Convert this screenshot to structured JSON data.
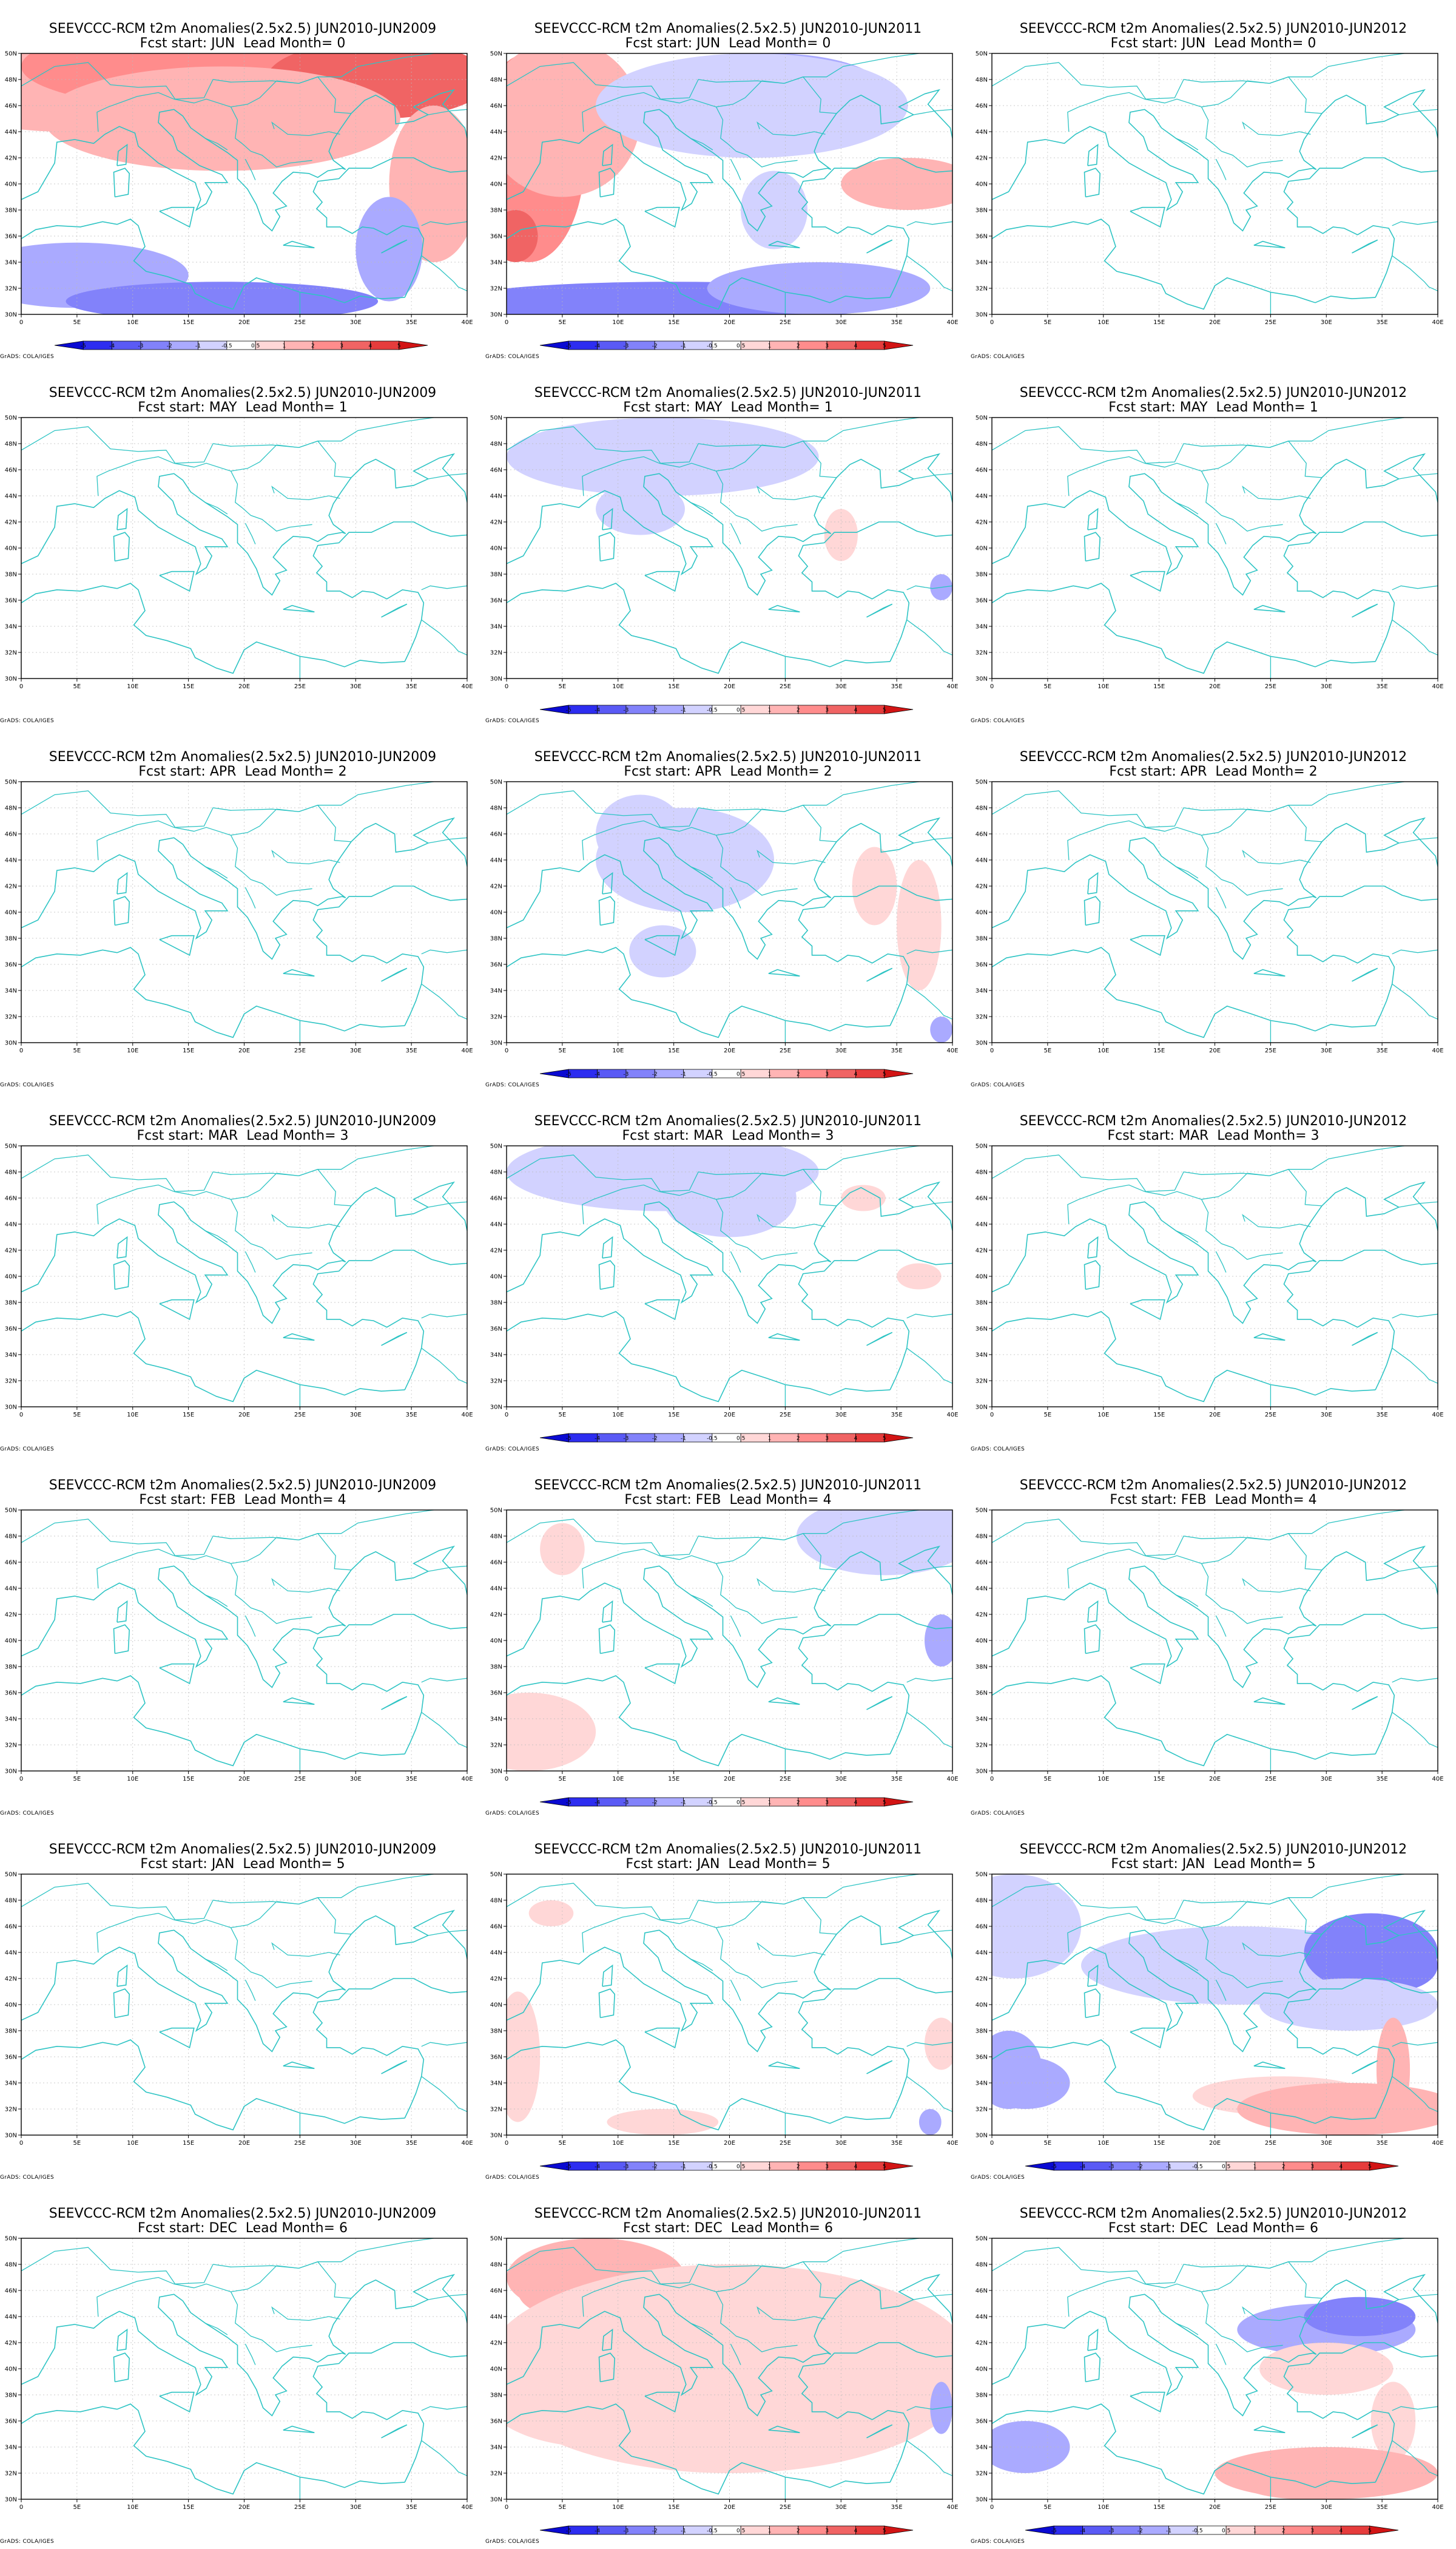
{
  "chart_data": {
    "type": "filled-contour-map-grid",
    "variable": "t2m",
    "credit": "GrADS: COLA/IGES",
    "columns": [
      {
        "comparison": "JUN2010-JUN2009"
      },
      {
        "comparison": "JUN2010-JUN2011"
      },
      {
        "comparison": "JUN2010-JUN2012"
      }
    ],
    "rows": [
      {
        "start": "JUN",
        "lead": 0
      },
      {
        "start": "MAY",
        "lead": 1
      },
      {
        "start": "APR",
        "lead": 2
      },
      {
        "start": "MAR",
        "lead": 3
      },
      {
        "start": "FEB",
        "lead": 4
      },
      {
        "start": "JAN",
        "lead": 5
      },
      {
        "start": "DEC",
        "lead": 6
      }
    ],
    "panels": [
      {
        "title_line1": "SEEVCCC-RCM t2m Anomalies(2.5x2.5) JUN2010-JUN2009",
        "title_line2": "Fcst start: JUN  Lead Month= 0",
        "row": 0,
        "col": 0,
        "colorbar": true,
        "anomaly_level": 2.0,
        "dominant_sign": "mixed"
      },
      {
        "title_line1": "SEEVCCC-RCM t2m Anomalies(2.5x2.5) JUN2010-JUN2011",
        "title_line2": "Fcst start: JUN  Lead Month= 0",
        "row": 0,
        "col": 1,
        "colorbar": true,
        "anomaly_level": 2.0,
        "dominant_sign": "mixed"
      },
      {
        "title_line1": "SEEVCCC-RCM t2m Anomalies(2.5x2.5) JUN2010-JUN2012",
        "title_line2": "Fcst start: JUN  Lead Month= 0",
        "row": 0,
        "col": 2,
        "colorbar": false,
        "anomaly_level": 0,
        "dominant_sign": "none"
      },
      {
        "title_line1": "SEEVCCC-RCM t2m Anomalies(2.5x2.5) JUN2010-JUN2009",
        "title_line2": "Fcst start: MAY  Lead Month= 1",
        "row": 1,
        "col": 0,
        "colorbar": false,
        "anomaly_level": 0,
        "dominant_sign": "none"
      },
      {
        "title_line1": "SEEVCCC-RCM t2m Anomalies(2.5x2.5) JUN2010-JUN2011",
        "title_line2": "Fcst start: MAY  Lead Month= 1",
        "row": 1,
        "col": 1,
        "colorbar": true,
        "anomaly_level": 0.5,
        "dominant_sign": "negative"
      },
      {
        "title_line1": "SEEVCCC-RCM t2m Anomalies(2.5x2.5) JUN2010-JUN2012",
        "title_line2": "Fcst start: MAY  Lead Month= 1",
        "row": 1,
        "col": 2,
        "colorbar": false,
        "anomaly_level": 0,
        "dominant_sign": "none"
      },
      {
        "title_line1": "SEEVCCC-RCM t2m Anomalies(2.5x2.5) JUN2010-JUN2009",
        "title_line2": "Fcst start: APR  Lead Month= 2",
        "row": 2,
        "col": 0,
        "colorbar": false,
        "anomaly_level": 0,
        "dominant_sign": "none"
      },
      {
        "title_line1": "SEEVCCC-RCM t2m Anomalies(2.5x2.5) JUN2010-JUN2011",
        "title_line2": "Fcst start: APR  Lead Month= 2",
        "row": 2,
        "col": 1,
        "colorbar": true,
        "anomaly_level": 0.5,
        "dominant_sign": "negative"
      },
      {
        "title_line1": "SEEVCCC-RCM t2m Anomalies(2.5x2.5) JUN2010-JUN2012",
        "title_line2": "Fcst start: APR  Lead Month= 2",
        "row": 2,
        "col": 2,
        "colorbar": false,
        "anomaly_level": 0,
        "dominant_sign": "none"
      },
      {
        "title_line1": "SEEVCCC-RCM t2m Anomalies(2.5x2.5) JUN2010-JUN2009",
        "title_line2": "Fcst start: MAR  Lead Month= 3",
        "row": 3,
        "col": 0,
        "colorbar": false,
        "anomaly_level": 0,
        "dominant_sign": "none"
      },
      {
        "title_line1": "SEEVCCC-RCM t2m Anomalies(2.5x2.5) JUN2010-JUN2011",
        "title_line2": "Fcst start: MAR  Lead Month= 3",
        "row": 3,
        "col": 1,
        "colorbar": true,
        "anomaly_level": 0.5,
        "dominant_sign": "negative"
      },
      {
        "title_line1": "SEEVCCC-RCM t2m Anomalies(2.5x2.5) JUN2010-JUN2012",
        "title_line2": "Fcst start: MAR  Lead Month= 3",
        "row": 3,
        "col": 2,
        "colorbar": false,
        "anomaly_level": 0,
        "dominant_sign": "none"
      },
      {
        "title_line1": "SEEVCCC-RCM t2m Anomalies(2.5x2.5) JUN2010-JUN2009",
        "title_line2": "Fcst start: FEB  Lead Month= 4",
        "row": 4,
        "col": 0,
        "colorbar": false,
        "anomaly_level": 0,
        "dominant_sign": "none"
      },
      {
        "title_line1": "SEEVCCC-RCM t2m Anomalies(2.5x2.5) JUN2010-JUN2011",
        "title_line2": "Fcst start: FEB  Lead Month= 4",
        "row": 4,
        "col": 1,
        "colorbar": true,
        "anomaly_level": 0.5,
        "dominant_sign": "mixed"
      },
      {
        "title_line1": "SEEVCCC-RCM t2m Anomalies(2.5x2.5) JUN2010-JUN2012",
        "title_line2": "Fcst start: FEB  Lead Month= 4",
        "row": 4,
        "col": 2,
        "colorbar": false,
        "anomaly_level": 0,
        "dominant_sign": "none"
      },
      {
        "title_line1": "SEEVCCC-RCM t2m Anomalies(2.5x2.5) JUN2010-JUN2009",
        "title_line2": "Fcst start: JAN  Lead Month= 5",
        "row": 5,
        "col": 0,
        "colorbar": false,
        "anomaly_level": 0,
        "dominant_sign": "none"
      },
      {
        "title_line1": "SEEVCCC-RCM t2m Anomalies(2.5x2.5) JUN2010-JUN2011",
        "title_line2": "Fcst start: JAN  Lead Month= 5",
        "row": 5,
        "col": 1,
        "colorbar": true,
        "anomaly_level": 0.5,
        "dominant_sign": "positive"
      },
      {
        "title_line1": "SEEVCCC-RCM t2m Anomalies(2.5x2.5) JUN2010-JUN2012",
        "title_line2": "Fcst start: JAN  Lead Month= 5",
        "row": 5,
        "col": 2,
        "colorbar": true,
        "anomaly_level": 2.0,
        "dominant_sign": "mixed"
      },
      {
        "title_line1": "SEEVCCC-RCM t2m Anomalies(2.5x2.5) JUN2010-JUN2009",
        "title_line2": "Fcst start: DEC  Lead Month= 6",
        "row": 6,
        "col": 0,
        "colorbar": false,
        "anomaly_level": 0,
        "dominant_sign": "none"
      },
      {
        "title_line1": "SEEVCCC-RCM t2m Anomalies(2.5x2.5) JUN2010-JUN2011",
        "title_line2": "Fcst start: DEC  Lead Month= 6",
        "row": 6,
        "col": 1,
        "colorbar": true,
        "anomaly_level": 1.0,
        "dominant_sign": "positive"
      },
      {
        "title_line1": "SEEVCCC-RCM t2m Anomalies(2.5x2.5) JUN2010-JUN2012",
        "title_line2": "Fcst start: DEC  Lead Month= 6",
        "row": 6,
        "col": 2,
        "colorbar": true,
        "anomaly_level": 1.5,
        "dominant_sign": "mixed"
      }
    ],
    "x_axis": {
      "range": [
        0,
        40
      ],
      "ticks": [
        "0",
        "5E",
        "10E",
        "15E",
        "20E",
        "25E",
        "30E",
        "35E",
        "40E"
      ]
    },
    "y_axis": {
      "range": [
        30,
        50
      ],
      "ticks": [
        "30N",
        "32N",
        "34N",
        "36N",
        "38N",
        "40N",
        "42N",
        "44N",
        "46N",
        "48N",
        "50N"
      ]
    },
    "colorbar": {
      "labels": [
        "-5",
        "-4",
        "-3",
        "-2",
        "-1",
        "-0.5",
        "0.5",
        "1",
        "2",
        "3",
        "4",
        "5"
      ],
      "colors": [
        "#0a0ad2",
        "#2d2df0",
        "#5a5af5",
        "#8282fa",
        "#aaaaff",
        "#d2d2ff",
        "#ffffff",
        "#ffd7d7",
        "#ffb4b4",
        "#ff8c8c",
        "#f06464",
        "#e63c3c",
        "#d21414"
      ]
    },
    "colors": {
      "coastline": "#2ec4c4",
      "grid": "#bbbbbb"
    }
  }
}
